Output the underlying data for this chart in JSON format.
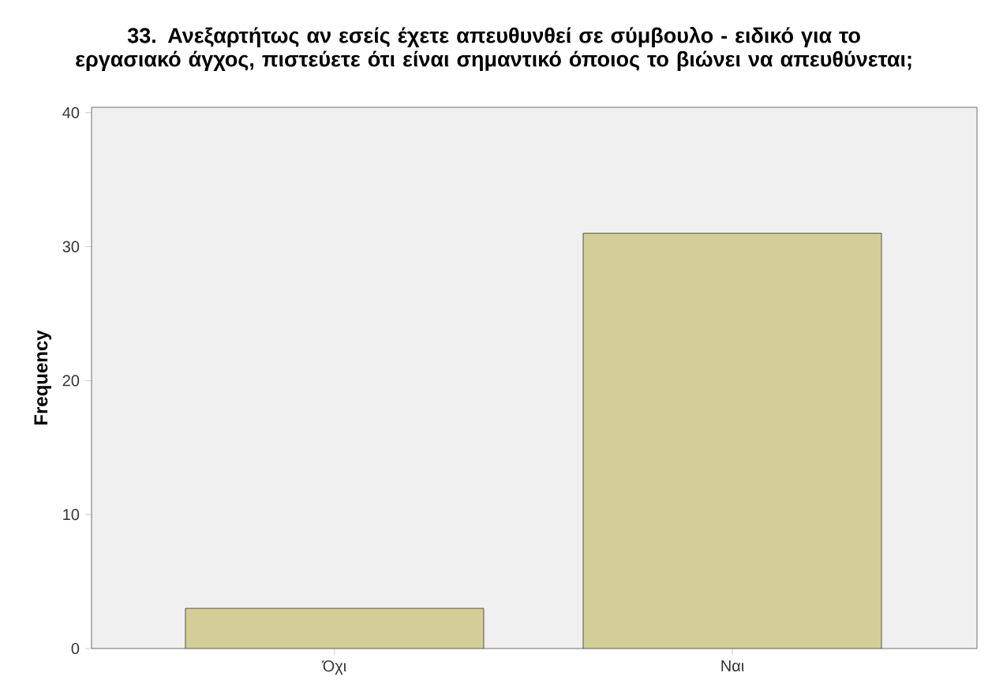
{
  "chart_data": {
    "type": "bar",
    "title": "33. Ανεξαρτήτως αν εσείς έχετε απευθυνθεί σε σύμβουλο - ειδικό για το εργασιακό άγχος, πιστεύετε ότι είναι σημαντικό όποιος το βιώνει να απευθύνεται;",
    "ylabel": "Frequency",
    "categories": [
      "Όχι",
      "Ναι"
    ],
    "values": [
      3,
      31
    ],
    "color": "#d3ce97",
    "ylim": [
      0,
      40.4
    ],
    "yticks": [
      0,
      10,
      20,
      30,
      40
    ]
  }
}
